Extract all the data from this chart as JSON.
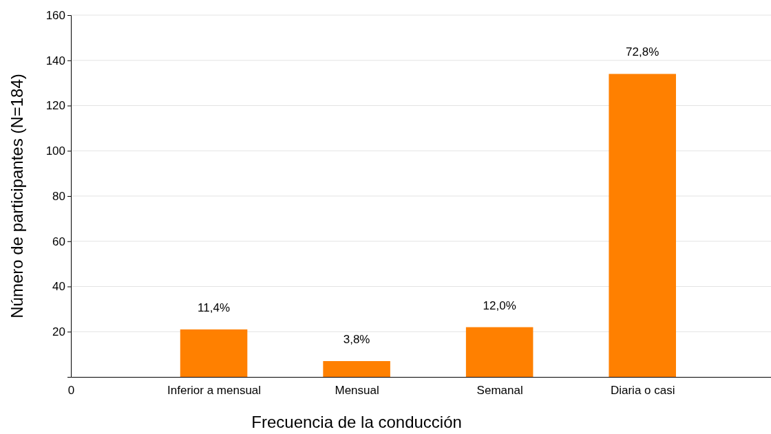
{
  "chart_data": {
    "type": "bar",
    "xlabel": "Frecuencia de la conducción",
    "ylabel": "Número de participantes (N=184)",
    "categories": [
      "0",
      "Inferior a mensual",
      "Mensual",
      "Semanal",
      "Diaria o casi"
    ],
    "values": [
      null,
      21,
      7,
      22,
      134
    ],
    "annotations": [
      {
        "text": "11,4%",
        "x": "Inferior a mensual",
        "y": 21
      },
      {
        "text": "3,8%",
        "x": "Mensual",
        "y": 7
      },
      {
        "text": "12,0%",
        "x": "Semanal",
        "y": 22
      },
      {
        "text": "72,8%",
        "x": "Diaria o casi",
        "y": 134
      }
    ],
    "color": "#ff8000",
    "ylim": [
      0,
      160
    ],
    "yticks": [
      20,
      40,
      60,
      80,
      100,
      120,
      140,
      160
    ],
    "grid": "y"
  }
}
